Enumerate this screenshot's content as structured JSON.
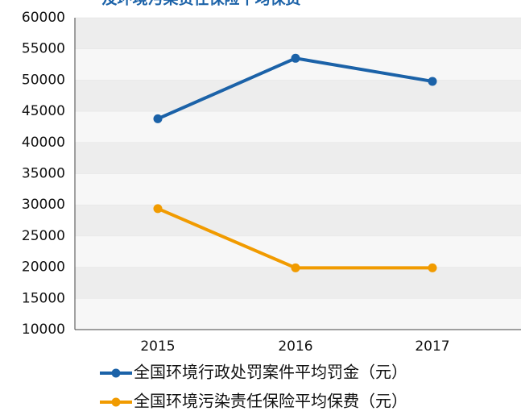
{
  "chart_data": {
    "type": "line",
    "title": "及环境污染责任保险平均保费",
    "categories": [
      "2015",
      "2016",
      "2017"
    ],
    "series": [
      {
        "name": "全国环境行政处罚案件平均罚金（元）",
        "color": "#1b62a8",
        "values": [
          43800,
          53500,
          49800
        ]
      },
      {
        "name": "全国环境污染责任保险平均保费（元）",
        "color": "#f19b00",
        "values": [
          29400,
          19900,
          19900
        ]
      }
    ],
    "ylim": [
      10000,
      60000
    ],
    "yticks": [
      10000,
      15000,
      20000,
      25000,
      30000,
      35000,
      40000,
      45000,
      50000,
      55000,
      60000
    ],
    "grid": true
  }
}
